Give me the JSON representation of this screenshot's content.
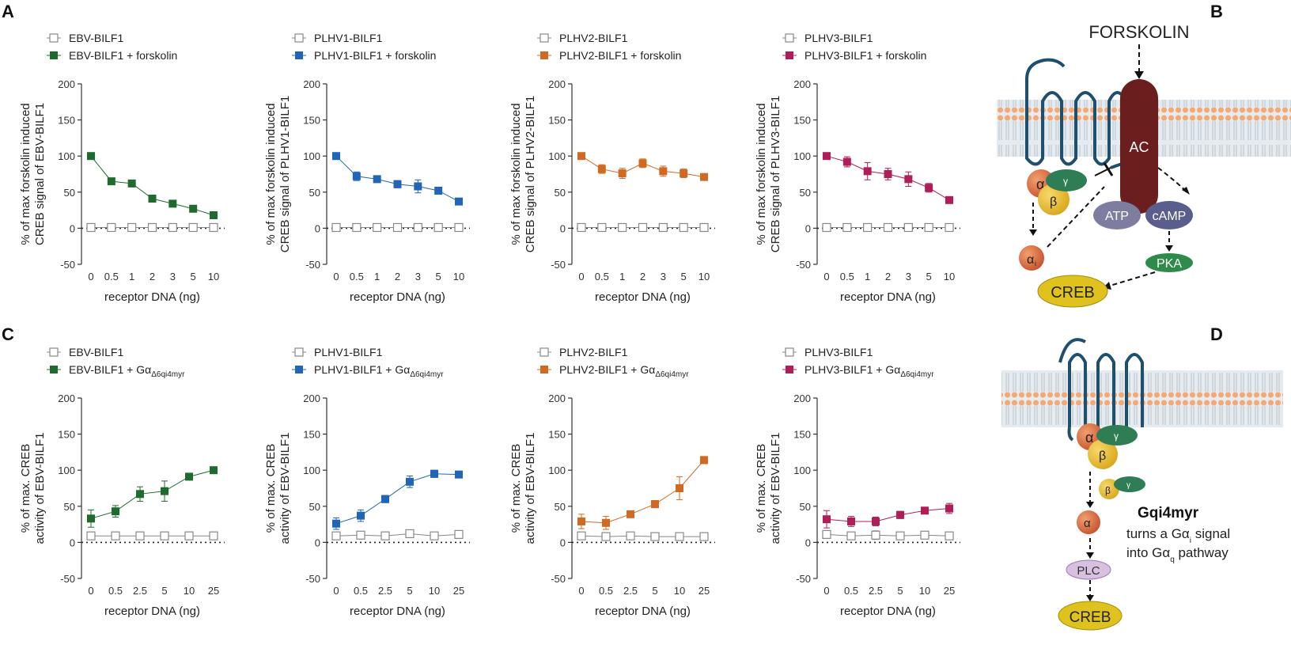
{
  "panels": {
    "A": "A",
    "B": "B",
    "C": "C",
    "D": "D"
  },
  "colors": {
    "EBV": "#1f6b2e",
    "PLHV1": "#2166b6",
    "PLHV2": "#d06a23",
    "PLHV3": "#b01e5a",
    "open": "#888888"
  },
  "chart_data": [
    {
      "type": "line",
      "panel": "A",
      "title": "",
      "color_key": "EBV",
      "categories": [
        "0",
        "0.5",
        "1",
        "2",
        "3",
        "5",
        "10"
      ],
      "ylabel": [
        "% of max forskolin induced",
        "CREB signal of  EBV-BILF1"
      ],
      "xlabel": "receptor DNA (ng)",
      "ylim": [
        -50,
        200
      ],
      "yticks": [
        -50,
        0,
        50,
        100,
        150,
        200
      ],
      "baseline": 0,
      "series": [
        {
          "name": "EBV-BILF1",
          "marker": "open",
          "values": [
            1,
            1,
            1,
            1,
            1,
            1,
            1
          ],
          "err": [
            2,
            2,
            2,
            2,
            2,
            2,
            2
          ]
        },
        {
          "name": "EBV-BILF1 + forskolin",
          "marker": "filled",
          "values": [
            100,
            65,
            62,
            41,
            34,
            27,
            18
          ],
          "err": [
            2,
            3,
            3,
            3,
            3,
            3,
            3
          ]
        }
      ]
    },
    {
      "type": "line",
      "panel": "A",
      "title": "",
      "color_key": "PLHV1",
      "categories": [
        "0",
        "0.5",
        "1",
        "2",
        "3",
        "5",
        "10"
      ],
      "ylabel": [
        "% of max forskolin induced",
        "CREB signal of PLHV1-BILF1"
      ],
      "xlabel": "receptor DNA (ng)",
      "ylim": [
        -50,
        200
      ],
      "yticks": [
        -50,
        0,
        50,
        100,
        150,
        200
      ],
      "baseline": 0,
      "series": [
        {
          "name": "PLHV1-BILF1",
          "marker": "open",
          "values": [
            1,
            1,
            1,
            1,
            1,
            1,
            1
          ],
          "err": [
            2,
            2,
            2,
            2,
            2,
            2,
            2
          ]
        },
        {
          "name": "PLHV1-BILF1 + forskolin",
          "marker": "filled",
          "values": [
            100,
            72,
            68,
            61,
            58,
            52,
            37
          ],
          "err": [
            3,
            6,
            4,
            5,
            9,
            3,
            4
          ]
        }
      ]
    },
    {
      "type": "line",
      "panel": "A",
      "title": "",
      "color_key": "PLHV2",
      "categories": [
        "0",
        "0.5",
        "1",
        "2",
        "3",
        "5",
        "10"
      ],
      "ylabel": [
        "% of max forskolin induced",
        "CREB signal of PLHV2-BILF1"
      ],
      "xlabel": "receptor DNA (ng)",
      "ylim": [
        -50,
        200
      ],
      "yticks": [
        -50,
        0,
        50,
        100,
        150,
        200
      ],
      "baseline": 0,
      "series": [
        {
          "name": "PLHV2-BILF1",
          "marker": "open",
          "values": [
            1,
            1,
            1,
            1,
            1,
            1,
            1
          ],
          "err": [
            2,
            2,
            2,
            2,
            2,
            2,
            2
          ]
        },
        {
          "name": "PLHV2-BILF1 + forskolin",
          "marker": "filled",
          "values": [
            100,
            82,
            76,
            90,
            79,
            76,
            71
          ],
          "err": [
            3,
            6,
            7,
            6,
            7,
            6,
            4
          ]
        }
      ]
    },
    {
      "type": "line",
      "panel": "A",
      "title": "",
      "color_key": "PLHV3",
      "categories": [
        "0",
        "0.5",
        "1",
        "2",
        "3",
        "5",
        "10"
      ],
      "ylabel": [
        "% of max forskolin induced",
        "CREB signal of  PLHV3-BILF1"
      ],
      "xlabel": "receptor DNA (ng)",
      "ylim": [
        -50,
        200
      ],
      "yticks": [
        -50,
        0,
        50,
        100,
        150,
        200
      ],
      "baseline": 0,
      "series": [
        {
          "name": "PLHV3-BILF1",
          "marker": "open",
          "values": [
            1,
            1,
            1,
            1,
            1,
            1,
            1
          ],
          "err": [
            2,
            2,
            2,
            2,
            2,
            2,
            2
          ]
        },
        {
          "name": "PLHV3-BILF1 + forskolin",
          "marker": "filled",
          "values": [
            100,
            92,
            79,
            75,
            68,
            56,
            39
          ],
          "err": [
            3,
            7,
            12,
            8,
            10,
            6,
            4
          ]
        }
      ]
    },
    {
      "type": "line",
      "panel": "C",
      "title": "",
      "color_key": "EBV",
      "categories": [
        "0",
        "0.5",
        "2.5",
        "5",
        "10",
        "25"
      ],
      "ylabel": [
        "% of max. CREB",
        "activity of  EBV-BILF1"
      ],
      "xlabel": "receptor DNA (ng)",
      "ylim": [
        -50,
        200
      ],
      "yticks": [
        -50,
        0,
        50,
        100,
        150,
        200
      ],
      "baseline": 0,
      "series": [
        {
          "name": "EBV-BILF1",
          "marker": "open",
          "values": [
            9,
            9,
            9,
            9,
            9,
            9
          ],
          "err": [
            3,
            3,
            3,
            3,
            3,
            3
          ]
        },
        {
          "name": "EBV-BILF1 + Gα",
          "subscript": "Δ6qi4myr",
          "marker": "filled",
          "values": [
            33,
            43,
            67,
            71,
            91,
            100
          ],
          "err": [
            12,
            8,
            10,
            14,
            4,
            3
          ]
        }
      ]
    },
    {
      "type": "line",
      "panel": "C",
      "title": "",
      "color_key": "PLHV1",
      "categories": [
        "0",
        "0.5",
        "2.5",
        "5",
        "10",
        "25"
      ],
      "ylabel": [
        "% of max. CREB",
        "activity of  EBV-BILF1"
      ],
      "xlabel": "receptor DNA (ng)",
      "ylim": [
        -50,
        200
      ],
      "yticks": [
        -50,
        0,
        50,
        100,
        150,
        200
      ],
      "baseline": 0,
      "series": [
        {
          "name": "PLHV1-BILF1",
          "marker": "open",
          "values": [
            9,
            10,
            9,
            12,
            9,
            11
          ],
          "err": [
            3,
            3,
            3,
            4,
            3,
            3
          ]
        },
        {
          "name": "PLHV1-BILF1 + Gα",
          "subscript": "Δ6qi4myr",
          "marker": "filled",
          "values": [
            26,
            37,
            60,
            84,
            95,
            94
          ],
          "err": [
            8,
            8,
            5,
            8,
            5,
            4
          ]
        }
      ]
    },
    {
      "type": "line",
      "panel": "C",
      "title": "",
      "color_key": "PLHV2",
      "categories": [
        "0",
        "0.5",
        "2.5",
        "5",
        "10",
        "25"
      ],
      "ylabel": [
        "% of max. CREB",
        "activity of  EBV-BILF1"
      ],
      "xlabel": "receptor DNA (ng)",
      "ylim": [
        -50,
        200
      ],
      "yticks": [
        -50,
        0,
        50,
        100,
        150,
        200
      ],
      "baseline": 0,
      "series": [
        {
          "name": "PLHV2-BILF1",
          "marker": "open",
          "values": [
            9,
            8,
            9,
            8,
            8,
            8
          ],
          "err": [
            3,
            3,
            3,
            3,
            4,
            3
          ]
        },
        {
          "name": "PLHV2-BILF1 + Gα",
          "subscript": "Δ6qi4myr",
          "marker": "filled",
          "values": [
            29,
            27,
            39,
            53,
            75,
            114
          ],
          "err": [
            10,
            9,
            4,
            5,
            16,
            5
          ]
        }
      ]
    },
    {
      "type": "line",
      "panel": "C",
      "title": "",
      "color_key": "PLHV3",
      "categories": [
        "0",
        "0.5",
        "2.5",
        "5",
        "10",
        "25"
      ],
      "ylabel": [
        "% of max. CREB",
        "activity of  EBV-BILF1"
      ],
      "xlabel": "receptor DNA (ng)",
      "ylim": [
        -50,
        200
      ],
      "yticks": [
        -50,
        0,
        50,
        100,
        150,
        200
      ],
      "baseline": 0,
      "series": [
        {
          "name": "PLHV3-BILF1",
          "marker": "open",
          "values": [
            11,
            9,
            10,
            9,
            10,
            9
          ],
          "err": [
            4,
            4,
            6,
            4,
            5,
            3
          ]
        },
        {
          "name": "PLHV3-BILF1 + Gα",
          "subscript": "Δ6qi4myr",
          "marker": "filled",
          "values": [
            32,
            29,
            29,
            38,
            44,
            47
          ],
          "err": [
            12,
            7,
            6,
            5,
            4,
            7
          ]
        }
      ]
    }
  ],
  "diagram_B": {
    "forskolin": "FORSKOLIN",
    "ac": "AC",
    "atp": "ATP",
    "camp": "cAMP",
    "pka": "PKA",
    "creb": "CREB",
    "alpha": "α",
    "beta": "β",
    "gamma": "γ",
    "alpha_i": "α",
    "alpha_i_sub": "i"
  },
  "diagram_D": {
    "alpha": "α",
    "beta": "β",
    "gamma": "γ",
    "gqi4myr": "Gqi4myr",
    "line2": "turns a Gα",
    "line2_sub": "i",
    "line2_end": " signal",
    "line3": "into Gα",
    "line3_sub": "q",
    "line3_end": " pathway",
    "plc": "PLC",
    "creb": "CREB"
  }
}
